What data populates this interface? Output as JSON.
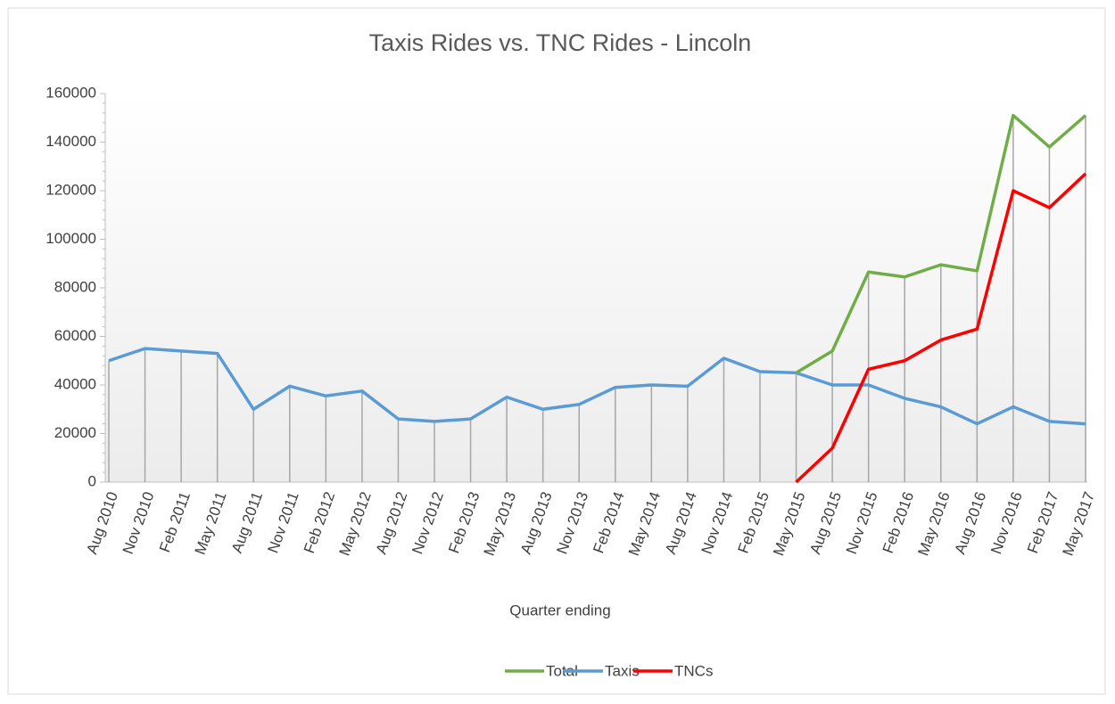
{
  "chart_data": {
    "type": "line",
    "title": "Taxis Rides vs. TNC Rides - Lincoln",
    "x_label": "Quarter ending",
    "categories": [
      "Aug 2010",
      "Nov 2010",
      "Feb 2011",
      "May 2011",
      "Aug 2011",
      "Nov 2011",
      "Feb 2012",
      "May 2012",
      "Aug 2012",
      "Nov 2012",
      "Feb 2013",
      "May 2013",
      "Aug 2013",
      "Nov 2013",
      "Feb 2014",
      "May 2014",
      "Aug 2014",
      "Nov 2014",
      "Feb 2015",
      "May 2015",
      "Aug 2015",
      "Nov 2015",
      "Feb 2016",
      "May 2016",
      "Aug 2016",
      "Nov 2016",
      "Feb 2017",
      "May 2017"
    ],
    "series": [
      {
        "name": "Total",
        "color": "#70ad47",
        "values": [
          null,
          null,
          null,
          null,
          null,
          null,
          null,
          null,
          null,
          null,
          null,
          null,
          null,
          null,
          null,
          null,
          null,
          null,
          null,
          45000,
          54000,
          86500,
          84500,
          89500,
          87000,
          151000,
          138000,
          151000
        ]
      },
      {
        "name": "Taxis",
        "color": "#5b9bd5",
        "values": [
          50000,
          55000,
          54000,
          53000,
          30000,
          39500,
          35500,
          37500,
          26000,
          25000,
          26000,
          35000,
          30000,
          32000,
          39000,
          40000,
          39500,
          51000,
          45500,
          45000,
          40000,
          40000,
          34500,
          31000,
          24000,
          31000,
          25000,
          24000
        ]
      },
      {
        "name": "TNCs",
        "color": "#ff0000",
        "values": [
          null,
          null,
          null,
          null,
          null,
          null,
          null,
          null,
          null,
          null,
          null,
          null,
          null,
          null,
          null,
          null,
          null,
          null,
          null,
          0,
          14000,
          46500,
          50000,
          58500,
          63000,
          120000,
          113000,
          127000
        ]
      }
    ],
    "ylim": [
      0,
      160000
    ],
    "yticks": [
      0,
      20000,
      40000,
      60000,
      80000,
      100000,
      120000,
      140000,
      160000
    ],
    "drop_lines": true,
    "legend": "bottom"
  }
}
